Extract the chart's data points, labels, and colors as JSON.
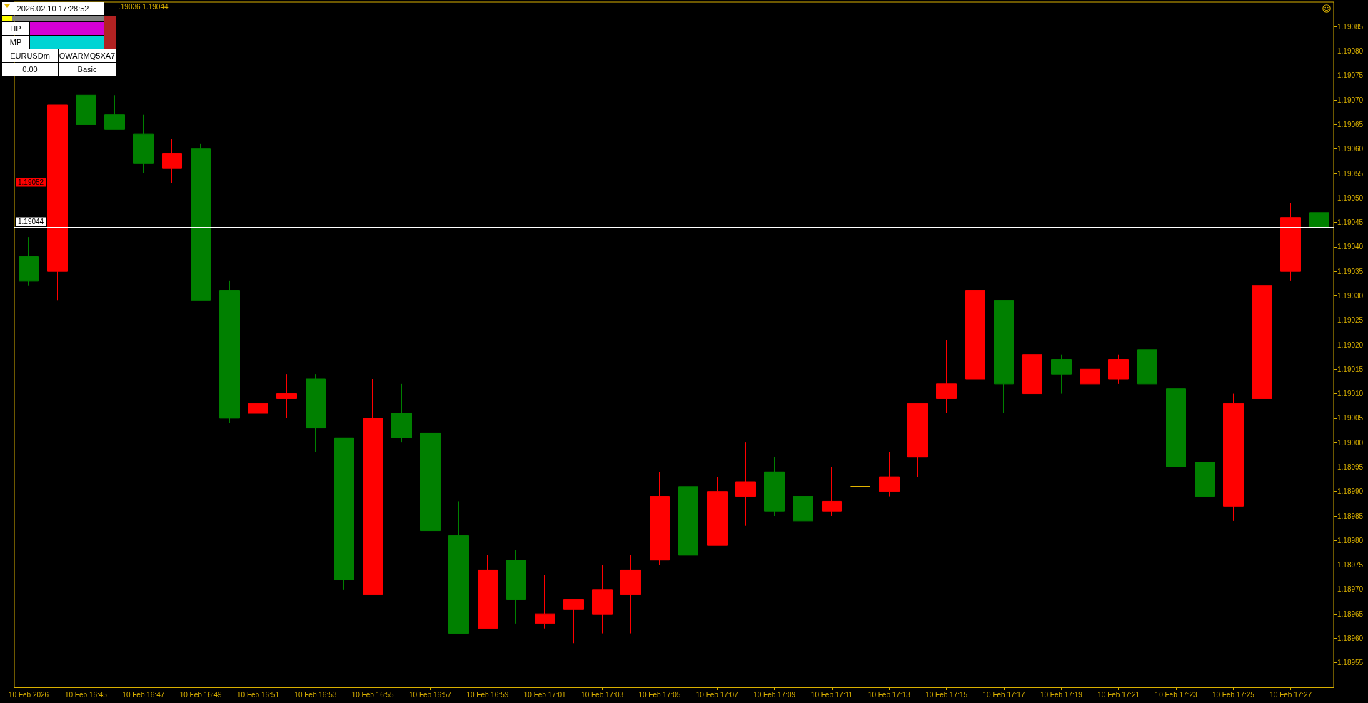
{
  "chart_data": {
    "type": "candlestick",
    "categories": [
      "10 Feb 2026",
      null,
      "10 Feb 16:45",
      null,
      "10 Feb 16:47",
      null,
      "10 Feb 16:49",
      null,
      "10 Feb 16:51",
      null,
      "10 Feb 16:53",
      null,
      "10 Feb 16:55",
      null,
      "10 Feb 16:57",
      null,
      "10 Feb 16:59",
      null,
      "10 Feb 17:01",
      null,
      "10 Feb 17:03",
      null,
      "10 Feb 17:05",
      null,
      "10 Feb 17:07",
      null,
      "10 Feb 17:09",
      null,
      "10 Feb 17:11",
      null,
      "10 Feb 17:13",
      null,
      "10 Feb 17:15",
      null,
      "10 Feb 17:17",
      null,
      "10 Feb 17:19",
      null,
      "10 Feb 17:21",
      null,
      "10 Feb 17:23",
      null,
      "10 Feb 17:25",
      null,
      "10 Feb 17:27",
      null
    ],
    "ohlc": [
      [
        1.19038,
        1.19042,
        1.19032,
        1.19033
      ],
      [
        1.19035,
        1.19069,
        1.19029,
        1.19069
      ],
      [
        1.19071,
        1.19074,
        1.19057,
        1.19065
      ],
      [
        1.19067,
        1.19071,
        1.19064,
        1.19064
      ],
      [
        1.19063,
        1.19067,
        1.19055,
        1.19057
      ],
      [
        1.19056,
        1.19062,
        1.19053,
        1.19059
      ],
      [
        1.1906,
        1.19061,
        1.19029,
        1.19029
      ],
      [
        1.19031,
        1.19033,
        1.19004,
        1.19005
      ],
      [
        1.19006,
        1.19015,
        1.1899,
        1.19008
      ],
      [
        1.19009,
        1.19014,
        1.19005,
        1.1901
      ],
      [
        1.19013,
        1.19014,
        1.18998,
        1.19003
      ],
      [
        1.19001,
        1.19001,
        1.1897,
        1.18972
      ],
      [
        1.18969,
        1.19013,
        1.18969,
        1.19005
      ],
      [
        1.19006,
        1.19012,
        1.19,
        1.19001
      ],
      [
        1.19002,
        1.19002,
        1.18982,
        1.18982
      ],
      [
        1.18981,
        1.18988,
        1.18961,
        1.18961
      ],
      [
        1.18962,
        1.18977,
        1.18962,
        1.18974
      ],
      [
        1.18976,
        1.18978,
        1.18963,
        1.18968
      ],
      [
        1.18963,
        1.18973,
        1.18962,
        1.18965
      ],
      [
        1.18966,
        1.18968,
        1.18959,
        1.18968
      ],
      [
        1.18965,
        1.18975,
        1.18961,
        1.1897
      ],
      [
        1.18969,
        1.18977,
        1.18961,
        1.18974
      ],
      [
        1.18976,
        1.18994,
        1.18975,
        1.18989
      ],
      [
        1.18991,
        1.18993,
        1.18977,
        1.18977
      ],
      [
        1.18979,
        1.18993,
        1.18979,
        1.1899
      ],
      [
        1.18989,
        1.19,
        1.18983,
        1.18992
      ],
      [
        1.18994,
        1.18997,
        1.18985,
        1.18986
      ],
      [
        1.18989,
        1.18993,
        1.1898,
        1.18984
      ],
      [
        1.18986,
        1.18995,
        1.18985,
        1.18988
      ],
      [
        1.18991,
        1.18995,
        1.18985,
        1.18991
      ],
      [
        1.1899,
        1.18998,
        1.18989,
        1.18993
      ],
      [
        1.18997,
        1.19008,
        1.18993,
        1.19008
      ],
      [
        1.19009,
        1.19021,
        1.19006,
        1.19012
      ],
      [
        1.19013,
        1.19034,
        1.19011,
        1.19031
      ],
      [
        1.19029,
        1.19029,
        1.19006,
        1.19012
      ],
      [
        1.1901,
        1.1902,
        1.19005,
        1.19018
      ],
      [
        1.19017,
        1.19018,
        1.1901,
        1.19014
      ],
      [
        1.19012,
        1.19015,
        1.1901,
        1.19015
      ],
      [
        1.19013,
        1.19018,
        1.19012,
        1.19017
      ],
      [
        1.19019,
        1.19024,
        1.19012,
        1.19012
      ],
      [
        1.19011,
        1.19011,
        1.18995,
        1.18995
      ],
      [
        1.18996,
        1.18996,
        1.18986,
        1.18989
      ],
      [
        1.18987,
        1.1901,
        1.18984,
        1.19008
      ],
      [
        1.19009,
        1.19035,
        1.19009,
        1.19032
      ],
      [
        1.19035,
        1.19049,
        1.19033,
        1.19046
      ],
      [
        1.19047,
        1.19047,
        1.19036,
        1.19044
      ]
    ],
    "colors": [
      "#008000",
      "#ff0000",
      "#008000",
      "#008000",
      "#008000",
      "#ff0000",
      "#008000",
      "#008000",
      "#ff0000",
      "#ff0000",
      "#008000",
      "#008000",
      "#ff0000",
      "#008000",
      "#008000",
      "#008000",
      "#ff0000",
      "#008000",
      "#ff0000",
      "#ff0000",
      "#ff0000",
      "#ff0000",
      "#ff0000",
      "#008000",
      "#ff0000",
      "#ff0000",
      "#008000",
      "#008000",
      "#ff0000",
      "#ffcc00",
      "#ff0000",
      "#ff0000",
      "#ff0000",
      "#ff0000",
      "#008000",
      "#ff0000",
      "#008000",
      "#ff0000",
      "#ff0000",
      "#008000",
      "#008000",
      "#008000",
      "#ff0000",
      "#ff0000",
      "#ff0000",
      "#008000"
    ],
    "ylim": [
      1.1895,
      1.1909
    ],
    "yticks": [
      1.18955,
      {
        "value": 1.1896,
        "label": "1.18960"
      },
      1.18965,
      {
        "value": 1.1897,
        "label": "1.18970"
      },
      1.18975,
      {
        "value": 1.1898,
        "label": "1.18980"
      },
      1.18985,
      {
        "value": 1.1899,
        "label": "1.18990"
      },
      1.18995,
      {
        "value": 1.19,
        "label": "1.19000"
      },
      1.19005,
      {
        "value": 1.1901,
        "label": "1.19010"
      },
      1.19015,
      {
        "value": 1.1902,
        "label": "1.19020"
      },
      1.19025,
      {
        "value": 1.1903,
        "label": "1.19030"
      },
      1.19035,
      {
        "value": 1.1904,
        "label": "1.19040"
      },
      1.19045,
      {
        "value": 1.1905,
        "label": "1.19050"
      },
      1.19055,
      {
        "value": 1.1906,
        "label": "1.19060"
      },
      1.19065,
      {
        "value": 1.1907,
        "label": "1.19070"
      },
      1.19075,
      {
        "value": 1.1908,
        "label": "1.19080"
      },
      1.19085
    ],
    "ref_lines": [
      {
        "axis": "y",
        "value": 1.19052,
        "label": "1.19052",
        "color": "#ff0000"
      },
      {
        "axis": "y",
        "value": 1.19044,
        "label": "1.19044",
        "color": "#ffffff"
      }
    ],
    "annotations": [
      "2026.02.10 17:28:52",
      "HP",
      "MP",
      "EURUSDm",
      "OWARMQ5XA7",
      "0.00",
      "Basic",
      ".19036 1.19044"
    ]
  }
}
